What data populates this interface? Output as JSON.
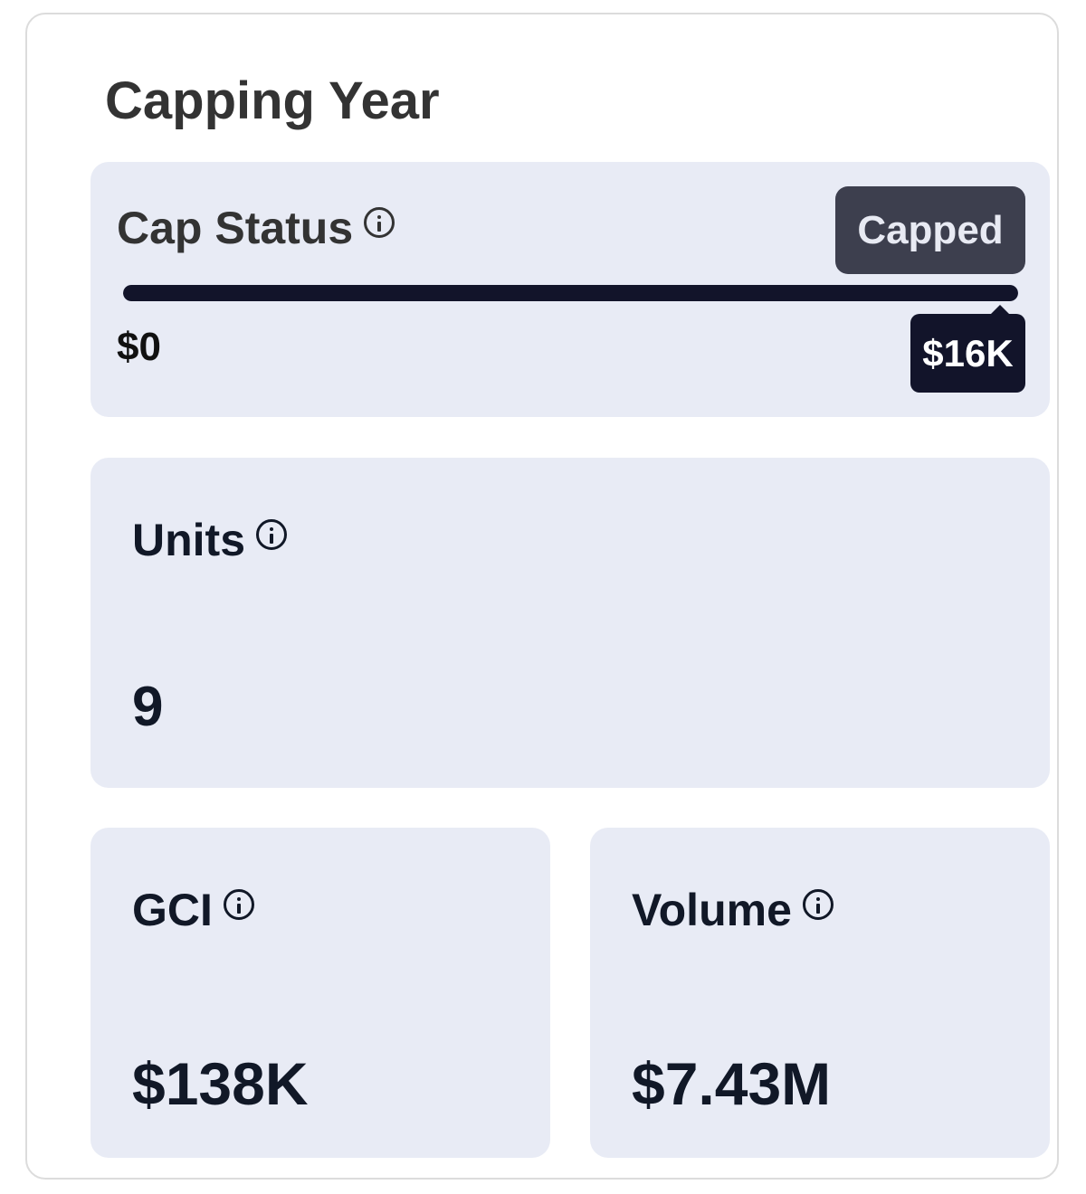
{
  "title": "Capping Year",
  "cap_status": {
    "label": "Cap Status",
    "info_icon": "info-icon",
    "badge": "Capped",
    "progress_percent": 100,
    "min_label": "$0",
    "current_label": "$16K",
    "colors": {
      "bar": "#12142a",
      "badge": "#3d3f4e",
      "panel": "#e8ebf5"
    }
  },
  "units": {
    "label": "Units",
    "value": "9"
  },
  "gci": {
    "label": "GCI",
    "value": "$138K"
  },
  "volume": {
    "label": "Volume",
    "value": "$7.43M"
  }
}
